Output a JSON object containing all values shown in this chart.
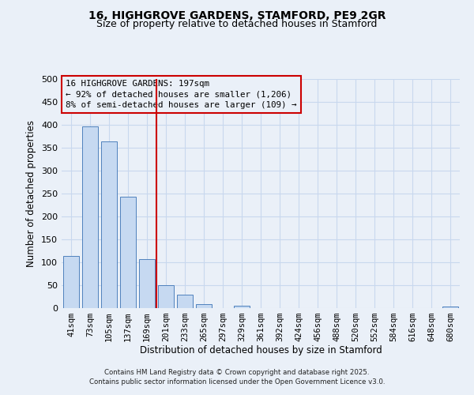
{
  "title": "16, HIGHGROVE GARDENS, STAMFORD, PE9 2GR",
  "subtitle": "Size of property relative to detached houses in Stamford",
  "xlabel": "Distribution of detached houses by size in Stamford",
  "ylabel": "Number of detached properties",
  "bar_labels": [
    "41sqm",
    "73sqm",
    "105sqm",
    "137sqm",
    "169sqm",
    "201sqm",
    "233sqm",
    "265sqm",
    "297sqm",
    "329sqm",
    "361sqm",
    "392sqm",
    "424sqm",
    "456sqm",
    "488sqm",
    "520sqm",
    "552sqm",
    "584sqm",
    "616sqm",
    "648sqm",
    "680sqm"
  ],
  "bar_values": [
    113,
    397,
    364,
    243,
    107,
    50,
    30,
    8,
    0,
    5,
    0,
    0,
    0,
    0,
    0,
    0,
    0,
    0,
    0,
    0,
    3
  ],
  "bar_color": "#c6d9f1",
  "bar_edge_color": "#4f81bd",
  "grid_color": "#c8d8ee",
  "background_color": "#eaf0f8",
  "vline_color": "#cc0000",
  "vline_index": 5,
  "annotation_title": "16 HIGHGROVE GARDENS: 197sqm",
  "annotation_line2": "← 92% of detached houses are smaller (1,206)",
  "annotation_line3": "8% of semi-detached houses are larger (109) →",
  "annotation_box_color": "#cc0000",
  "ylim": [
    0,
    500
  ],
  "yticks": [
    0,
    50,
    100,
    150,
    200,
    250,
    300,
    350,
    400,
    450,
    500
  ],
  "footer1": "Contains HM Land Registry data © Crown copyright and database right 2025.",
  "footer2": "Contains public sector information licensed under the Open Government Licence v3.0."
}
